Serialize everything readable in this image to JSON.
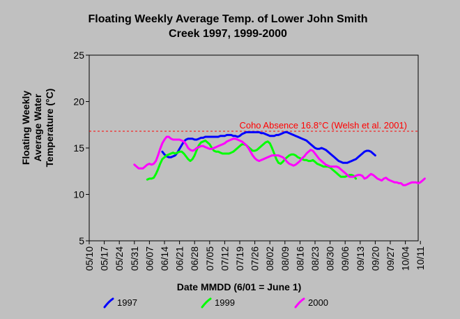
{
  "chart_data": {
    "type": "line",
    "title_lines": [
      "Floating Weekly Average Temp. of Lower John Smith",
      "Creek 1997, 1999-2000"
    ],
    "xlabel": "Date MMDD (6/01 = June 1)",
    "ylabel_lines": [
      "Floating Weekly",
      "Average Water",
      "Temperature (°C)"
    ],
    "ylim": [
      5,
      25
    ],
    "yticks": [
      5,
      10,
      15,
      20,
      25
    ],
    "x_tick_labels": [
      "05/10",
      "05/17",
      "05/24",
      "05/31",
      "06/07",
      "06/14",
      "06/21",
      "06/28",
      "07/05",
      "07/12",
      "07/19",
      "07/26",
      "08/02",
      "08/09",
      "08/16",
      "08/23",
      "08/30",
      "09/06",
      "09/13",
      "09/20",
      "09/27",
      "10/04",
      "10/11"
    ],
    "grid": false,
    "legend_placement": "bottom",
    "reference_line": {
      "value": 16.8,
      "label": "Coho Absence 16.8°C (Welsh et al. 2001)",
      "color": "#ff0000"
    },
    "series": [
      {
        "name": "1997",
        "color": "#0000ff",
        "x": [
          34,
          35,
          36,
          37,
          38,
          39,
          40,
          41,
          42,
          43,
          44,
          45,
          46,
          47,
          48,
          49,
          50,
          51,
          52,
          53,
          54,
          55,
          56,
          57,
          58,
          59,
          60,
          61,
          62,
          63,
          64,
          65,
          66,
          67,
          68,
          69,
          70,
          71,
          72,
          73,
          74,
          75,
          76,
          77,
          78,
          79,
          80,
          81,
          82,
          83,
          84,
          85,
          86,
          87,
          88,
          89,
          90,
          91,
          92,
          93,
          94,
          95,
          96,
          97,
          98,
          99,
          100,
          101,
          102,
          103,
          104,
          105,
          106,
          107,
          108,
          109,
          110,
          111,
          112,
          113,
          114,
          115,
          116,
          117,
          118,
          119,
          120,
          121,
          122,
          123,
          124,
          125,
          126,
          127,
          128,
          129,
          130,
          131,
          132,
          133
        ],
        "y": [
          14.6,
          14.3,
          14.1,
          14.0,
          14.0,
          14.1,
          14.2,
          14.5,
          14.9,
          15.3,
          15.7,
          15.9,
          16.0,
          16.0,
          16.0,
          15.9,
          15.9,
          16.0,
          16.1,
          16.1,
          16.2,
          16.2,
          16.2,
          16.2,
          16.2,
          16.2,
          16.2,
          16.3,
          16.3,
          16.3,
          16.4,
          16.4,
          16.4,
          16.3,
          16.3,
          16.2,
          16.3,
          16.5,
          16.6,
          16.7,
          16.7,
          16.7,
          16.7,
          16.7,
          16.7,
          16.7,
          16.6,
          16.6,
          16.5,
          16.4,
          16.3,
          16.3,
          16.3,
          16.4,
          16.4,
          16.5,
          16.6,
          16.7,
          16.7,
          16.6,
          16.5,
          16.4,
          16.3,
          16.2,
          16.1,
          16.0,
          15.9,
          15.8,
          15.6,
          15.4,
          15.2,
          15.0,
          14.9,
          14.9,
          15.0,
          14.9,
          14.8,
          14.6,
          14.4,
          14.2,
          14.0,
          13.8,
          13.6,
          13.5,
          13.4,
          13.4,
          13.4,
          13.5,
          13.6,
          13.7,
          13.8,
          14.0,
          14.2,
          14.4,
          14.6,
          14.7,
          14.7,
          14.6,
          14.4,
          14.2
        ]
      },
      {
        "name": "1999",
        "color": "#00ff00",
        "x": [
          27,
          28,
          29,
          30,
          31,
          32,
          33,
          34,
          35,
          36,
          37,
          38,
          39,
          40,
          41,
          42,
          43,
          44,
          45,
          46,
          47,
          48,
          49,
          50,
          51,
          52,
          53,
          54,
          55,
          56,
          57,
          58,
          59,
          60,
          61,
          62,
          63,
          64,
          65,
          66,
          67,
          68,
          69,
          70,
          71,
          72,
          73,
          74,
          75,
          76,
          77,
          78,
          79,
          80,
          81,
          82,
          83,
          84,
          85,
          86,
          87,
          88,
          89,
          90,
          91,
          92,
          93,
          94,
          95,
          96,
          97,
          98,
          99,
          100,
          101,
          102,
          103,
          104,
          105,
          106,
          107,
          108,
          109,
          110,
          111,
          112,
          113,
          114,
          115,
          116,
          117,
          118,
          119,
          120,
          121,
          122,
          123,
          124
        ],
        "y": [
          11.6,
          11.7,
          11.7,
          11.8,
          12.2,
          12.7,
          13.3,
          13.8,
          14.0,
          14.2,
          14.3,
          14.4,
          14.5,
          14.4,
          14.5,
          14.6,
          14.6,
          14.4,
          14.1,
          13.8,
          13.6,
          13.8,
          14.2,
          14.8,
          15.3,
          15.6,
          15.7,
          15.8,
          15.6,
          15.4,
          15.0,
          14.7,
          14.6,
          14.6,
          14.5,
          14.4,
          14.4,
          14.4,
          14.4,
          14.5,
          14.6,
          14.8,
          15.0,
          15.2,
          15.4,
          15.4,
          15.3,
          15.1,
          14.9,
          14.7,
          14.7,
          14.8,
          15.0,
          15.2,
          15.4,
          15.6,
          15.7,
          15.5,
          15.0,
          14.4,
          13.8,
          13.4,
          13.3,
          13.5,
          13.8,
          14.0,
          14.2,
          14.3,
          14.3,
          14.2,
          14.0,
          13.9,
          13.8,
          13.7,
          13.7,
          13.6,
          13.6,
          13.7,
          13.5,
          13.3,
          13.2,
          13.1,
          13.0,
          13.0,
          13.0,
          12.9,
          12.7,
          12.5,
          12.3,
          12.1,
          11.9,
          11.9,
          11.9,
          12.0,
          12.1,
          12.1,
          12.0,
          11.7
        ]
      },
      {
        "name": "2000",
        "color": "#ff00ff",
        "x": [
          21,
          22,
          23,
          24,
          25,
          26,
          27,
          28,
          29,
          30,
          31,
          32,
          33,
          34,
          35,
          36,
          37,
          38,
          39,
          40,
          41,
          42,
          43,
          44,
          45,
          46,
          47,
          48,
          49,
          50,
          51,
          52,
          53,
          54,
          55,
          56,
          57,
          58,
          59,
          60,
          61,
          62,
          63,
          64,
          65,
          66,
          67,
          68,
          69,
          70,
          71,
          72,
          73,
          74,
          75,
          76,
          77,
          78,
          79,
          80,
          81,
          82,
          83,
          84,
          85,
          86,
          87,
          88,
          89,
          90,
          91,
          92,
          93,
          94,
          95,
          96,
          97,
          98,
          99,
          100,
          101,
          102,
          103,
          104,
          105,
          106,
          107,
          108,
          109,
          110,
          111,
          112,
          113,
          114,
          115,
          116,
          117,
          118,
          119,
          120,
          121,
          122,
          123,
          124,
          125,
          126,
          127,
          128,
          129,
          130,
          131,
          132,
          133,
          134,
          135,
          136,
          137,
          138,
          139,
          140,
          141,
          142,
          143,
          144,
          145,
          146,
          147,
          148,
          149,
          150,
          151,
          152,
          153,
          154,
          155,
          156
        ],
        "y": [
          13.2,
          13.0,
          12.8,
          12.8,
          12.8,
          13.0,
          13.2,
          13.3,
          13.2,
          13.3,
          13.6,
          14.2,
          14.9,
          15.5,
          15.9,
          16.2,
          16.2,
          16.0,
          15.9,
          15.9,
          15.9,
          15.9,
          15.8,
          15.7,
          15.4,
          15.0,
          14.8,
          14.7,
          14.8,
          15.0,
          15.1,
          15.2,
          15.2,
          15.1,
          15.0,
          14.9,
          14.9,
          15.0,
          15.1,
          15.2,
          15.3,
          15.4,
          15.5,
          15.7,
          15.8,
          15.9,
          16.0,
          16.0,
          15.9,
          15.8,
          15.7,
          15.5,
          15.3,
          15.0,
          14.6,
          14.2,
          13.9,
          13.7,
          13.6,
          13.7,
          13.8,
          13.9,
          14.0,
          14.1,
          14.2,
          14.2,
          14.2,
          14.2,
          14.1,
          14.0,
          13.8,
          13.5,
          13.3,
          13.2,
          13.1,
          13.2,
          13.4,
          13.6,
          13.9,
          14.1,
          14.4,
          14.6,
          14.8,
          14.7,
          14.4,
          14.1,
          13.8,
          13.6,
          13.4,
          13.2,
          13.1,
          13.0,
          13.0,
          13.0,
          13.0,
          12.9,
          12.7,
          12.5,
          12.3,
          12.1,
          11.9,
          11.9,
          11.9,
          12.0,
          12.1,
          12.1,
          12.0,
          11.7,
          11.8,
          12.0,
          12.2,
          12.1,
          11.9,
          11.7,
          11.6,
          11.5,
          11.7,
          11.8,
          11.6,
          11.5,
          11.4,
          11.3,
          11.3,
          11.2,
          11.2,
          11.0,
          11.0,
          11.1,
          11.2,
          11.3,
          11.3,
          11.3,
          11.2,
          11.3,
          11.5,
          11.7
        ]
      }
    ]
  }
}
